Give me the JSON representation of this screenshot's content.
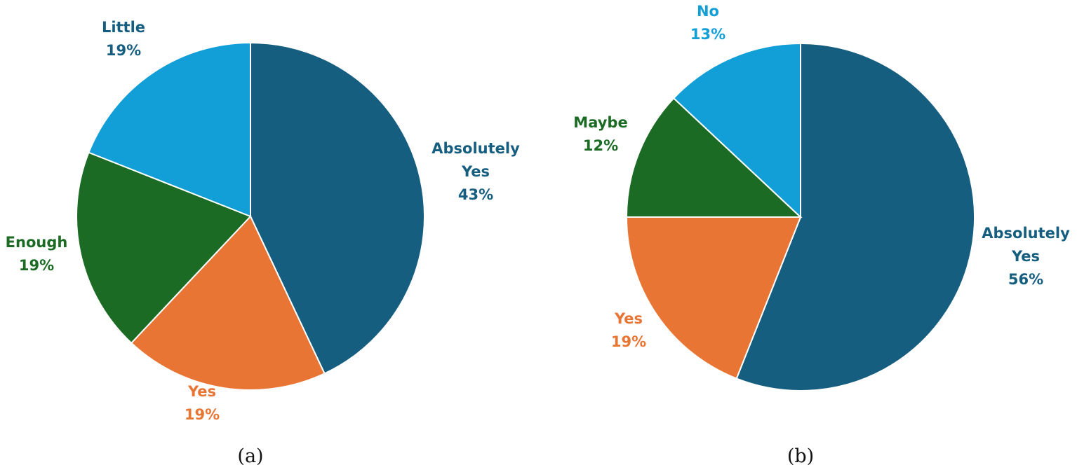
{
  "chart_data": [
    {
      "type": "pie",
      "caption": "(a)",
      "start": "top",
      "direction": "clockwise",
      "slices": [
        {
          "label_lines": [
            "Absolutely",
            "Yes"
          ],
          "pct_label": "43%",
          "value": 43,
          "color": "#165e80",
          "text_color": "#165e80"
        },
        {
          "label_lines": [
            "Yes"
          ],
          "pct_label": "19%",
          "value": 19,
          "color": "#e97534",
          "text_color": "#e97534"
        },
        {
          "label_lines": [
            "Enough"
          ],
          "pct_label": "19%",
          "value": 19,
          "color": "#1c6b24",
          "text_color": "#1c6b24"
        },
        {
          "label_lines": [
            "Little"
          ],
          "pct_label": "19%",
          "value": 19,
          "color": "#129fd8",
          "text_color": "#165e80"
        }
      ]
    },
    {
      "type": "pie",
      "caption": "(b)",
      "start": "top",
      "direction": "clockwise",
      "slices": [
        {
          "label_lines": [
            "Absolutely",
            "Yes"
          ],
          "pct_label": "56%",
          "value": 56,
          "color": "#165e80",
          "text_color": "#165e80"
        },
        {
          "label_lines": [
            "Yes"
          ],
          "pct_label": "19%",
          "value": 19,
          "color": "#e97534",
          "text_color": "#e97534"
        },
        {
          "label_lines": [
            "Maybe"
          ],
          "pct_label": "12%",
          "value": 12,
          "color": "#1c6b24",
          "text_color": "#1c6b24"
        },
        {
          "label_lines": [
            "No"
          ],
          "pct_label": "13%",
          "value": 13,
          "color": "#129fd8",
          "text_color": "#129fd8"
        }
      ]
    }
  ]
}
